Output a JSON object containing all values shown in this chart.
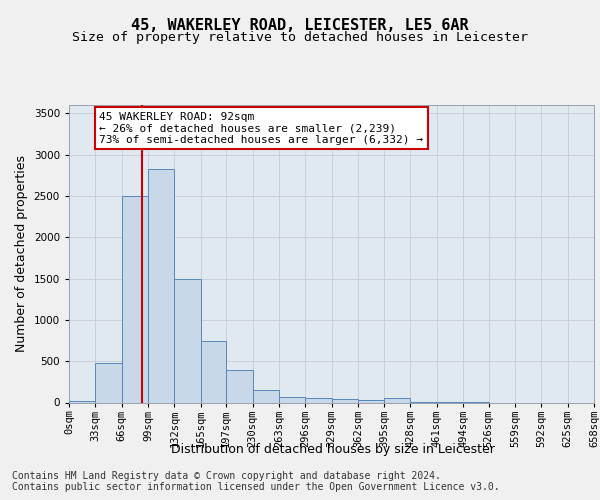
{
  "title_line1": "45, WAKERLEY ROAD, LEICESTER, LE5 6AR",
  "title_line2": "Size of property relative to detached houses in Leicester",
  "xlabel": "Distribution of detached houses by size in Leicester",
  "ylabel": "Number of detached properties",
  "bin_edges": [
    0,
    33,
    66,
    99,
    132,
    165,
    197,
    230,
    263,
    296,
    329,
    362,
    395,
    428,
    461,
    494,
    526,
    559,
    592,
    625,
    658
  ],
  "bin_labels": [
    "0sqm",
    "33sqm",
    "66sqm",
    "99sqm",
    "132sqm",
    "165sqm",
    "197sqm",
    "230sqm",
    "263sqm",
    "296sqm",
    "329sqm",
    "362sqm",
    "395sqm",
    "428sqm",
    "461sqm",
    "494sqm",
    "526sqm",
    "559sqm",
    "592sqm",
    "625sqm",
    "658sqm"
  ],
  "bar_values": [
    20,
    480,
    2500,
    2820,
    1500,
    740,
    390,
    155,
    70,
    60,
    45,
    30,
    55,
    5,
    5,
    5,
    0,
    0,
    0,
    0
  ],
  "bar_color": "#c8d8e8",
  "bar_edge_color": "#5588bb",
  "property_size": 92,
  "red_line_color": "#cc0000",
  "annotation_text": "45 WAKERLEY ROAD: 92sqm\n← 26% of detached houses are smaller (2,239)\n73% of semi-detached houses are larger (6,332) →",
  "annotation_box_color": "#ffffff",
  "annotation_box_edge": "#cc0000",
  "ylim": [
    0,
    3600
  ],
  "yticks": [
    0,
    500,
    1000,
    1500,
    2000,
    2500,
    3000,
    3500
  ],
  "xlim": [
    0,
    658
  ],
  "background_color": "#e0e8f0",
  "fig_background_color": "#f0f0f0",
  "footer_line1": "Contains HM Land Registry data © Crown copyright and database right 2024.",
  "footer_line2": "Contains public sector information licensed under the Open Government Licence v3.0.",
  "title_fontsize": 11,
  "subtitle_fontsize": 9.5,
  "ylabel_fontsize": 9,
  "xlabel_fontsize": 9,
  "tick_fontsize": 7.5,
  "annotation_fontsize": 8,
  "footer_fontsize": 7
}
